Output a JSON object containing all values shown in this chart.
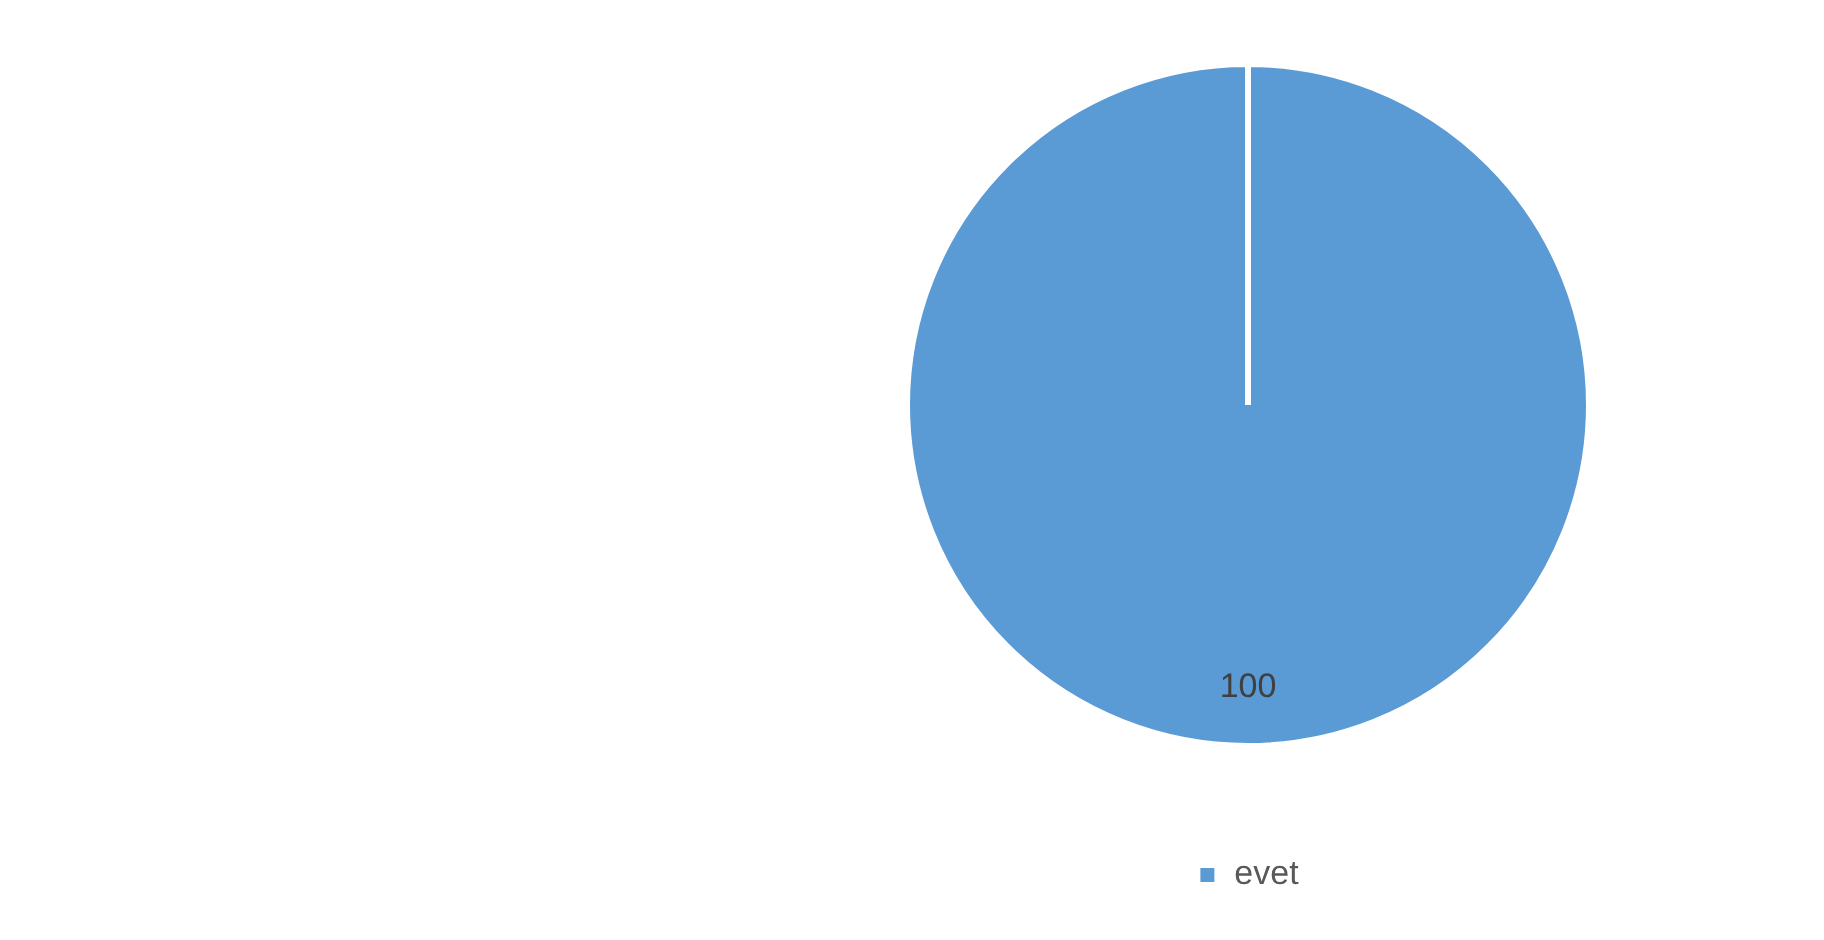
{
  "chart_data": {
    "type": "pie",
    "categories": [
      "evet"
    ],
    "values": [
      100
    ],
    "colors": [
      "#5b9bd5"
    ],
    "data_labels": true,
    "legend": "bottom"
  }
}
